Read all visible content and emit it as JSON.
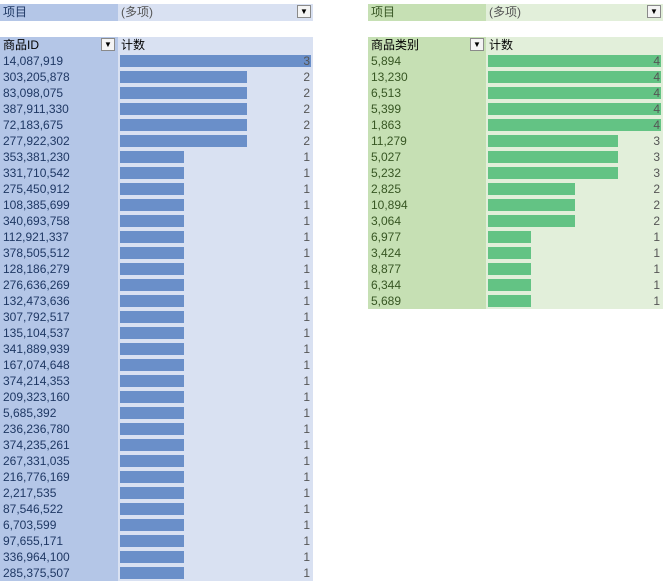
{
  "left_pivot": {
    "filter_label": "项目",
    "filter_value": "(多项)",
    "row_header": "商品ID",
    "value_header": "计数",
    "filter_icon": "filter-funnel-icon",
    "header_icon": "sort-filter-dropdown-icon",
    "bar_color": "#6a8fc9"
  },
  "right_pivot": {
    "filter_label": "项目",
    "filter_value": "(多项)",
    "row_header": "商品类别",
    "value_header": "计数",
    "filter_icon": "filter-funnel-icon",
    "header_icon": "sort-filter-dropdown-icon",
    "bar_color": "#63c384"
  },
  "chart_data": [
    {
      "type": "bar",
      "title": "",
      "xlabel": "计数",
      "ylabel": "商品ID",
      "categories": [
        "14,087,919",
        "303,205,878",
        "83,098,075",
        "387,911,330",
        "72,183,675",
        "277,922,302",
        "353,381,230",
        "331,710,542",
        "275,450,912",
        "108,385,699",
        "340,693,758",
        "112,921,337",
        "378,505,512",
        "128,186,279",
        "276,636,269",
        "132,473,636",
        "307,792,517",
        "135,104,537",
        "341,889,939",
        "167,074,648",
        "374,214,353",
        "209,323,160",
        "5,685,392",
        "236,236,780",
        "374,235,261",
        "267,331,035",
        "216,776,169",
        "2,217,535",
        "87,546,522",
        "6,703,599",
        "97,655,171",
        "336,964,100",
        "285,375,507"
      ],
      "values": [
        3,
        2,
        2,
        2,
        2,
        2,
        1,
        1,
        1,
        1,
        1,
        1,
        1,
        1,
        1,
        1,
        1,
        1,
        1,
        1,
        1,
        1,
        1,
        1,
        1,
        1,
        1,
        1,
        1,
        1,
        1,
        1,
        1
      ],
      "xlim": [
        0,
        3
      ]
    },
    {
      "type": "bar",
      "title": "",
      "xlabel": "计数",
      "ylabel": "商品类别",
      "categories": [
        "5,894",
        "13,230",
        "6,513",
        "5,399",
        "1,863",
        "11,279",
        "5,027",
        "5,232",
        "2,825",
        "10,894",
        "3,064",
        "6,977",
        "3,424",
        "8,877",
        "6,344",
        "5,689"
      ],
      "values": [
        4,
        4,
        4,
        4,
        4,
        3,
        3,
        3,
        2,
        2,
        2,
        1,
        1,
        1,
        1,
        1
      ],
      "xlim": [
        0,
        4
      ]
    }
  ]
}
